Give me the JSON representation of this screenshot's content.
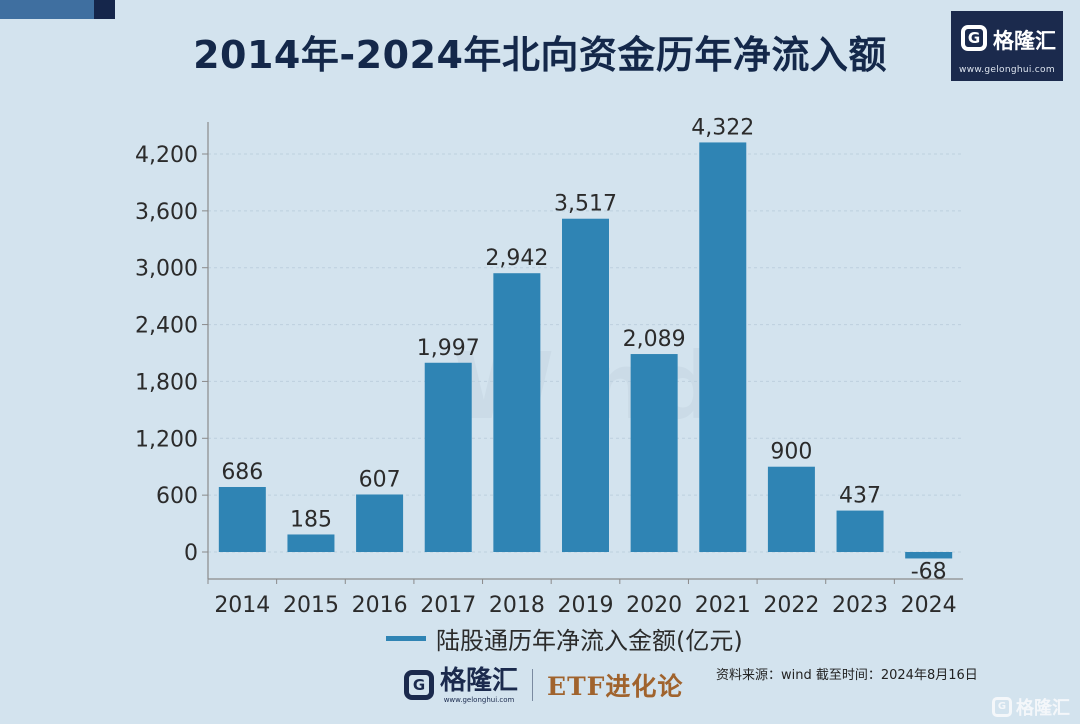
{
  "header": {
    "title": "2014年-2024年北向资金历年净流入额"
  },
  "logo": {
    "g": "G",
    "name": "格隆汇",
    "url": "www.gelonghui.com"
  },
  "footer": {
    "brand_g": "G",
    "brand_name": "格隆汇",
    "brand_url": "www.gelonghui.com",
    "etf_label": "ETF进化论",
    "source": "资料来源：wind  截至时间：2024年8月16日"
  },
  "watermark": {
    "g": "G",
    "text": "格隆汇"
  },
  "colors": {
    "bar": "#2f84b4",
    "background": "#d3e3ee",
    "title": "#14284a"
  },
  "chart_data": {
    "type": "bar",
    "categories": [
      "2014",
      "2015",
      "2016",
      "2017",
      "2018",
      "2019",
      "2020",
      "2021",
      "2022",
      "2023",
      "2024"
    ],
    "series": [
      {
        "name": "陆股通历年净流入金额(亿元)",
        "values": [
          686,
          185,
          607,
          1997,
          2942,
          3517,
          2089,
          4322,
          900,
          437,
          -68
        ],
        "labels": [
          "686",
          "185",
          "607",
          "1,997",
          "2,942",
          "3,517",
          "2,089",
          "4,322",
          "900",
          "437",
          "-68"
        ]
      }
    ],
    "y_ticks": [
      0,
      600,
      1200,
      1800,
      2400,
      3000,
      3600,
      4200
    ],
    "y_tick_labels": [
      "0",
      "600",
      "1,200",
      "1,800",
      "2,400",
      "3,000",
      "3,600",
      "4,200"
    ],
    "ylim": [
      -300,
      4500
    ],
    "grid": true,
    "legend_position": "bottom",
    "background_watermark": "Wind",
    "xlabel": "",
    "ylabel": ""
  }
}
